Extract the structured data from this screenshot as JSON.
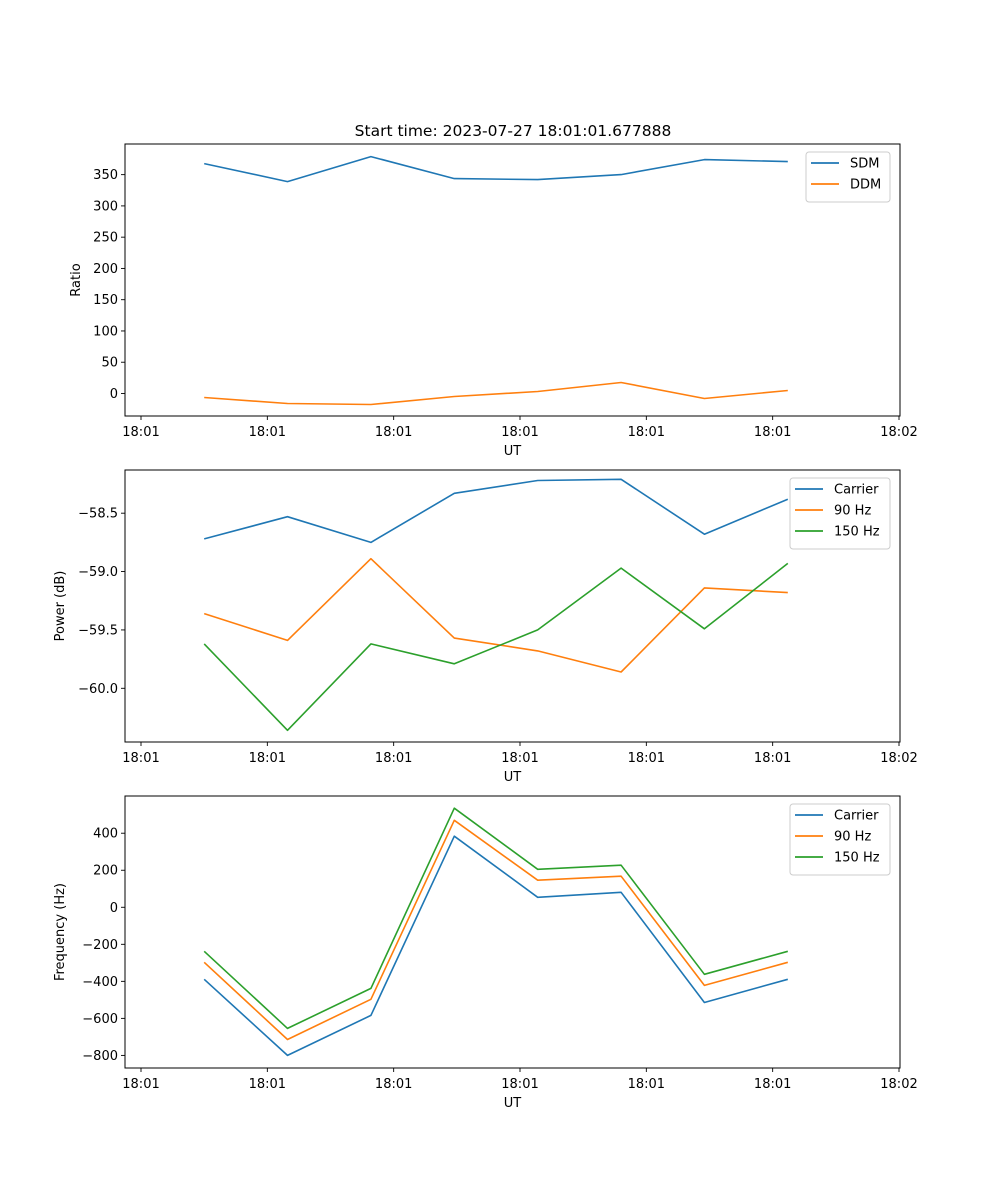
{
  "figure": {
    "title": "Start time: 2023-07-27 18:01:01.677888"
  },
  "chart_data": [
    {
      "type": "line",
      "title": "Start time: 2023-07-27 18:01:01.677888",
      "xlabel": "UT",
      "ylabel": "Ratio",
      "x_tick_labels": [
        "18:01",
        "18:01",
        "18:01",
        "18:01",
        "18:01",
        "18:01",
        "18:02"
      ],
      "x_range": [
        0,
        6
      ],
      "x": [
        0.5,
        1.16,
        1.82,
        2.48,
        3.14,
        3.8,
        4.46,
        5.12
      ],
      "y_ticks": [
        0,
        50,
        100,
        150,
        200,
        250,
        300,
        350
      ],
      "ylim": [
        -36,
        399
      ],
      "grid": false,
      "legend_position": "top-right",
      "series": [
        {
          "name": "SDM",
          "color": "#1f77b4",
          "values": [
            367.6,
            338.8,
            378.8,
            343.6,
            342.0,
            350.0,
            374.0,
            370.8
          ]
        },
        {
          "name": "DDM",
          "color": "#ff7f0e",
          "values": [
            -6.4,
            -16.0,
            -17.6,
            -4.8,
            3.2,
            17.6,
            -8.0,
            4.8
          ]
        }
      ]
    },
    {
      "type": "line",
      "xlabel": "UT",
      "ylabel": "Power (dB)",
      "x_tick_labels": [
        "18:01",
        "18:01",
        "18:01",
        "18:01",
        "18:01",
        "18:01",
        "18:02"
      ],
      "x_range": [
        0,
        6
      ],
      "x": [
        0.5,
        1.16,
        1.82,
        2.48,
        3.14,
        3.8,
        4.46,
        5.12
      ],
      "y_ticks": [
        -60.0,
        -59.5,
        -59.0,
        -58.5
      ],
      "y_tick_labels": [
        "−60.0",
        "−59.5",
        "−59.0",
        "−58.5"
      ],
      "ylim": [
        -60.46,
        -58.13
      ],
      "grid": false,
      "legend_position": "top-right",
      "series": [
        {
          "name": "Carrier",
          "color": "#1f77b4",
          "values": [
            -58.72,
            -58.53,
            -58.75,
            -58.33,
            -58.22,
            -58.21,
            -58.68,
            -58.38
          ]
        },
        {
          "name": "90 Hz",
          "color": "#ff7f0e",
          "values": [
            -59.36,
            -59.59,
            -58.89,
            -59.57,
            -59.68,
            -59.86,
            -59.14,
            -59.18
          ]
        },
        {
          "name": "150 Hz",
          "color": "#2ca02c",
          "values": [
            -59.62,
            -60.36,
            -59.62,
            -59.79,
            -59.5,
            -58.97,
            -59.49,
            -58.93
          ]
        }
      ]
    },
    {
      "type": "line",
      "xlabel": "UT",
      "ylabel": "Frequency (Hz)",
      "x_tick_labels": [
        "18:01",
        "18:01",
        "18:01",
        "18:01",
        "18:01",
        "18:01",
        "18:02"
      ],
      "x_range": [
        0,
        6
      ],
      "x": [
        0.5,
        1.16,
        1.82,
        2.48,
        3.14,
        3.8,
        4.46,
        5.12
      ],
      "y_ticks": [
        -800,
        -600,
        -400,
        -200,
        0,
        200,
        400
      ],
      "y_tick_labels": [
        "−800",
        "−600",
        "−400",
        "−200",
        "0",
        "200",
        "400"
      ],
      "ylim": [
        -868,
        601
      ],
      "grid": false,
      "legend_position": "top-right",
      "series": [
        {
          "name": "Carrier",
          "color": "#1f77b4",
          "values": [
            -389,
            -800,
            -584,
            384,
            54,
            81,
            -514,
            -389
          ]
        },
        {
          "name": "90 Hz",
          "color": "#ff7f0e",
          "values": [
            -297,
            -714,
            -497,
            470,
            146,
            168,
            -422,
            -297
          ]
        },
        {
          "name": "150 Hz",
          "color": "#2ca02c",
          "values": [
            -238,
            -654,
            -438,
            535,
            205,
            227,
            -362,
            -238
          ]
        }
      ]
    }
  ]
}
